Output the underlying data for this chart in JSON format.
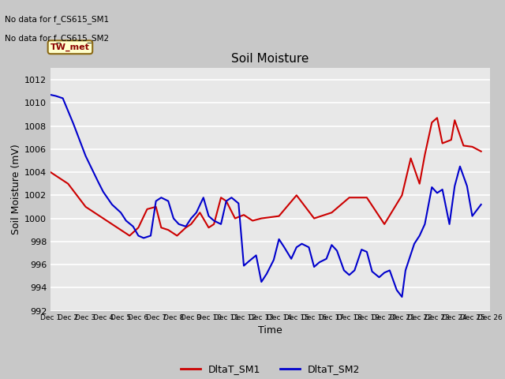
{
  "title": "Soil Moisture",
  "xlabel": "Time",
  "ylabel": "Soil Moisture (mV)",
  "ylim": [
    992,
    1013
  ],
  "yticks": [
    992,
    994,
    996,
    998,
    1000,
    1002,
    1004,
    1006,
    1008,
    1010,
    1012
  ],
  "annotations": [
    "No data for f_CS615_SM1",
    "No data for f_CS615_SM2"
  ],
  "box_label": "TW_met",
  "legend": [
    "DltaT_SM1",
    "DltaT_SM2"
  ],
  "line_colors": [
    "#cc0000",
    "#0000cc"
  ],
  "fig_bg": "#c8c8c8",
  "plot_bg": "#e8e8e8",
  "sm1_x": [
    1,
    2,
    3,
    4,
    5,
    5.5,
    6,
    6.5,
    7,
    7.3,
    7.7,
    8.2,
    8.7,
    9,
    9.5,
    10,
    10.3,
    10.7,
    11,
    11.5,
    12,
    12.5,
    13,
    14,
    15,
    16,
    17,
    18,
    19,
    20,
    21,
    21.5,
    22,
    22.3,
    22.7,
    23,
    23.3,
    23.8,
    24,
    24.5,
    25,
    25.5
  ],
  "sm1_y": [
    1004,
    1003,
    1001,
    1000,
    999,
    998.5,
    999.2,
    1000.8,
    1001,
    999.2,
    999,
    998.5,
    999.2,
    999.5,
    1000.5,
    999.2,
    999.5,
    1001.8,
    1001.5,
    1000,
    1000.3,
    999.8,
    1000,
    1000.2,
    1002,
    1000,
    1000.5,
    1001.8,
    1001.8,
    999.5,
    1002,
    1005.2,
    1003,
    1005.5,
    1008.3,
    1008.7,
    1006.5,
    1006.8,
    1008.5,
    1006.3,
    1006.2,
    1005.8
  ],
  "sm2_x": [
    1,
    1.3,
    1.7,
    2.3,
    3,
    3.7,
    4,
    4.5,
    5,
    5.3,
    5.7,
    6,
    6.3,
    6.7,
    7,
    7.3,
    7.7,
    8,
    8.3,
    8.7,
    9,
    9.3,
    9.7,
    10,
    10.3,
    10.7,
    11,
    11.3,
    11.7,
    12,
    12.3,
    12.7,
    13,
    13.3,
    13.7,
    14,
    14.3,
    14.7,
    15,
    15.3,
    15.7,
    16,
    16.3,
    16.7,
    17,
    17.3,
    17.7,
    18,
    18.3,
    18.7,
    19,
    19.3,
    19.7,
    20,
    20.3,
    20.7,
    21,
    21.2,
    21.7,
    22,
    22.3,
    22.7,
    23,
    23.3,
    23.7,
    24,
    24.3,
    24.7,
    25,
    25.5
  ],
  "sm2_y": [
    1010.7,
    1010.6,
    1010.4,
    1008.2,
    1005.4,
    1003.2,
    1002.3,
    1001.2,
    1000.5,
    999.8,
    999.3,
    998.5,
    998.3,
    998.5,
    1001.5,
    1001.8,
    1001.5,
    1000,
    999.5,
    999.3,
    1000,
    1000.5,
    1001.8,
    1000.2,
    999.8,
    999.5,
    1001.5,
    1001.8,
    1001.3,
    995.9,
    996.3,
    996.8,
    994.5,
    995.2,
    996.4,
    998.2,
    997.5,
    996.5,
    997.5,
    997.8,
    997.5,
    995.8,
    996.2,
    996.5,
    997.7,
    997.2,
    995.5,
    995.1,
    995.5,
    997.3,
    997.1,
    995.4,
    994.9,
    995.3,
    995.5,
    993.8,
    993.2,
    995.5,
    997.8,
    998.5,
    999.5,
    1002.7,
    1002.2,
    1002.5,
    999.5,
    1002.8,
    1004.5,
    1002.8,
    1000.2,
    1001.2
  ]
}
